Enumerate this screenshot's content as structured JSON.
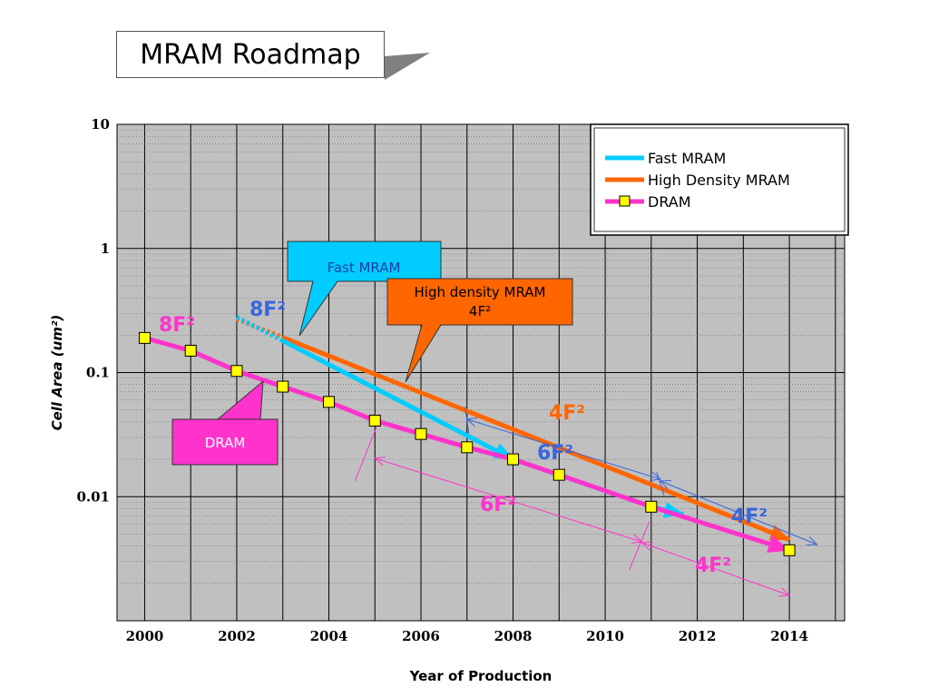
{
  "page_title": "MRAM Roadmap",
  "chart_data": {
    "type": "line",
    "title": "MRAM Roadmap",
    "xlabel": "Year of Production",
    "ylabel": "Cell Area (um²)",
    "xlim": [
      1999.4,
      2015.2
    ],
    "ylim": [
      0.001,
      10
    ],
    "y_scale": "log",
    "x_ticks": [
      2000,
      2002,
      2004,
      2006,
      2008,
      2010,
      2012,
      2014
    ],
    "x_tick_labels": [
      "2000",
      "2002",
      "2004",
      "2006",
      "2008",
      "2010",
      "2012",
      "2014"
    ],
    "y_ticks": [
      0.01,
      0.1,
      1,
      10
    ],
    "y_tick_labels": [
      "0.01",
      "0.1",
      "1",
      "10"
    ],
    "grid": true,
    "legend_position": "top-right",
    "series": [
      {
        "name": "Fast MRAM",
        "color": "#00ccff",
        "x": [
          2002,
          2008
        ],
        "y": [
          0.28,
          0.02
        ]
      },
      {
        "name": "High Density MRAM",
        "color": "#ff6600",
        "x": [
          2002,
          2014
        ],
        "y": [
          0.27,
          0.0045
        ]
      },
      {
        "name": "DRAM",
        "color": "#ff33cc",
        "marker": "square",
        "marker_color": "#ffff00",
        "x": [
          2000,
          2001,
          2002,
          2003,
          2004,
          2005,
          2006,
          2007,
          2008,
          2009,
          2011,
          2014
        ],
        "y": [
          0.19,
          0.15,
          0.103,
          0.077,
          0.058,
          0.041,
          0.032,
          0.025,
          0.02,
          0.015,
          0.0083,
          0.0037
        ]
      }
    ],
    "callouts": {
      "fast_mram": "Fast MRAM",
      "high_density_line1": "High density MRAM",
      "high_density_line2": "4F²",
      "dram": "DRAM"
    },
    "annotations": {
      "dram_8f2": "8F²",
      "fast_8f2": "8F²",
      "hd_4f2": "4F²",
      "fast_6f2": "6F²",
      "dram_6f2": "6F²",
      "fast_4f2": "4F²",
      "dram_4f2": "4F²"
    }
  }
}
